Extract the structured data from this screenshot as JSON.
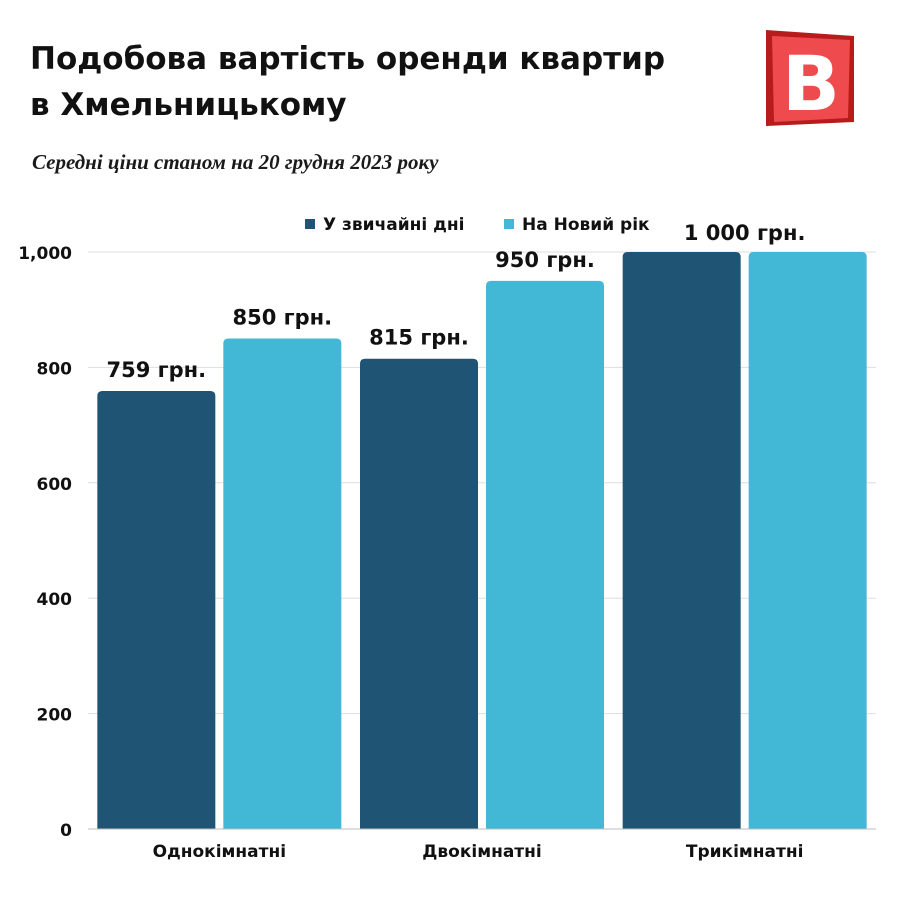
{
  "header": {
    "title_line1": "Подобова вартість оренди квартир",
    "title_line2": "в Хмельницькому",
    "subtitle": "Середні ціни станом на 20 грудня 2023 року",
    "logo_letter": "B"
  },
  "colors": {
    "series_regular": "#1f5474",
    "series_new_year": "#42b8d6",
    "grid": "#dedede",
    "text": "#111111",
    "logo_red": "#e8393b"
  },
  "chart_data": {
    "type": "bar",
    "title": "Подобова вартість оренди квартир в Хмельницькому",
    "subtitle": "Середні ціни станом на 20 грудня 2023 року",
    "categories": [
      "Однокімнатні",
      "Двокімнатні",
      "Трикімнатні"
    ],
    "series": [
      {
        "name": "У звичайні дні",
        "values": [
          759,
          815,
          1000
        ],
        "labels": [
          "759 грн.",
          "815 грн.",
          ""
        ]
      },
      {
        "name": "На Новий рік",
        "values": [
          850,
          950,
          1000
        ],
        "labels": [
          "850 грн.",
          "950 грн.",
          ""
        ]
      }
    ],
    "shared_labels": [
      "",
      "",
      "1 000 грн."
    ],
    "ylim": [
      0,
      1000
    ],
    "yticks": [
      0,
      200,
      400,
      600,
      800,
      1000
    ],
    "ytick_labels": [
      "0",
      "200",
      "400",
      "600",
      "800",
      "1,000"
    ],
    "grid": true,
    "legend": "top-center"
  }
}
